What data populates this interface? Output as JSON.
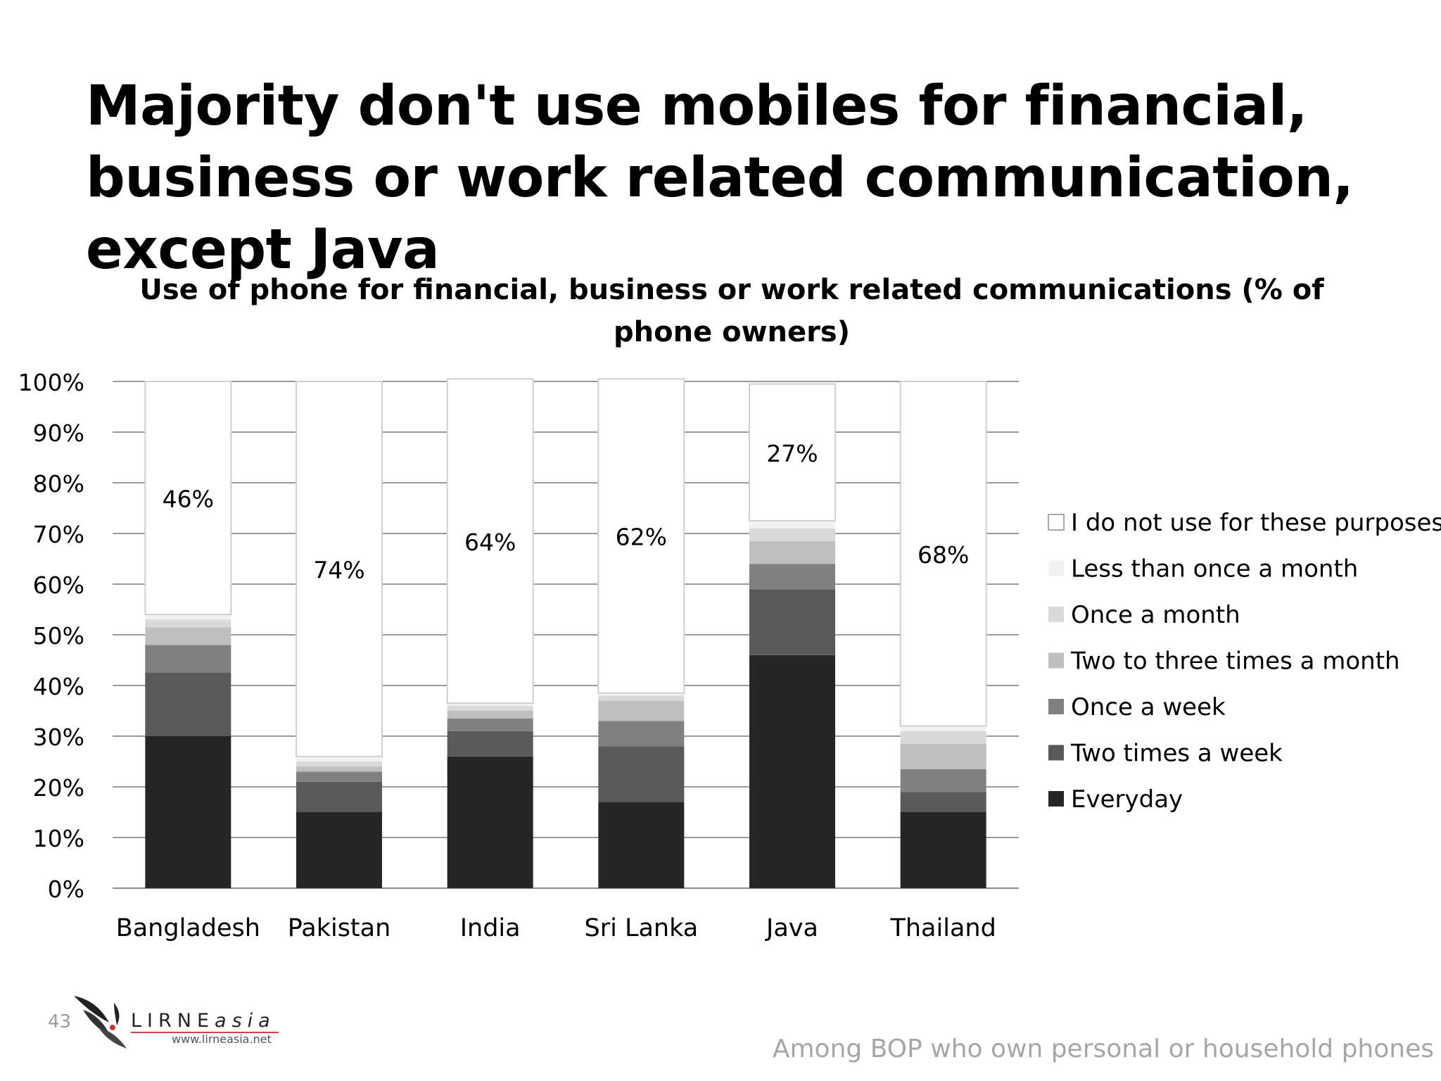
{
  "slide": {
    "title": "Majority don't use mobiles for financial, business or work related communication, except Java",
    "page_number": "43",
    "footer_note": "Among BOP who own personal or household phones",
    "logo": {
      "name_caps": "LIRNE",
      "name_italic": "asia",
      "url": "www.lirneasia.net"
    }
  },
  "chart_data": {
    "type": "bar",
    "stacked": true,
    "title": "Use of phone for financial, business or work related communications (% of phone owners)",
    "xlabel": "",
    "ylabel": "",
    "ylim": [
      0,
      100
    ],
    "yticks": [
      "0%",
      "10%",
      "20%",
      "30%",
      "40%",
      "50%",
      "60%",
      "70%",
      "80%",
      "90%",
      "100%"
    ],
    "grid": true,
    "legend_position": "right",
    "categories": [
      "Bangladesh",
      "Pakistan",
      "India",
      "Sri Lanka",
      "Java",
      "Thailand"
    ],
    "series": [
      {
        "name": "Everyday",
        "color": "#262626",
        "values": [
          30,
          15,
          26,
          17,
          46,
          15
        ]
      },
      {
        "name": "Two times a week",
        "color": "#595959",
        "values": [
          12.5,
          6,
          5,
          11,
          13,
          4
        ]
      },
      {
        "name": "Once a week",
        "color": "#808080",
        "values": [
          5.5,
          2,
          2.5,
          5,
          5,
          4.5
        ]
      },
      {
        "name": "Two to three times a month",
        "color": "#bfbfbf",
        "values": [
          3.5,
          1,
          1.5,
          4,
          4.5,
          5
        ]
      },
      {
        "name": "Once a month",
        "color": "#d9d9d9",
        "values": [
          1.5,
          1,
          1,
          1,
          2.5,
          2.5
        ]
      },
      {
        "name": "Less than once a month",
        "color": "#f2f2f2",
        "values": [
          1,
          1,
          0.5,
          0.5,
          1.5,
          1
        ]
      },
      {
        "name": "I do not use for these purposes",
        "color": "#ffffff",
        "values": [
          46,
          74,
          64,
          62,
          27,
          68
        ]
      }
    ],
    "data_labels": [
      "46%",
      "74%",
      "64%",
      "62%",
      "27%",
      "68%"
    ]
  }
}
